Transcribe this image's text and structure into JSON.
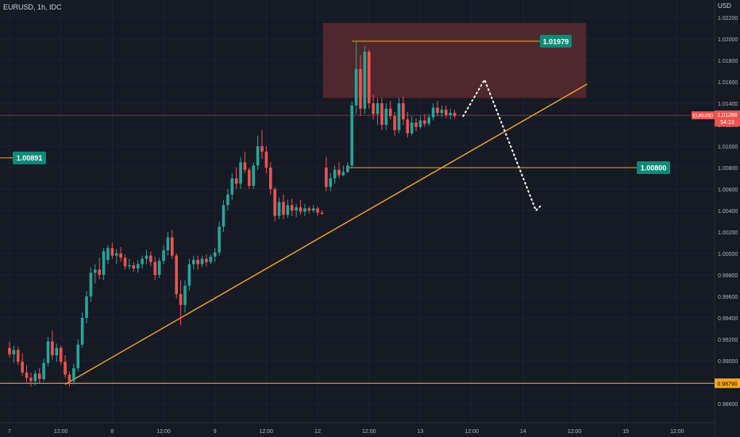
{
  "header": {
    "symbol": "EURUSD, 1h, IDC",
    "currency": "USD"
  },
  "colors": {
    "background": "#161a25",
    "bull": "#26a69a",
    "bear": "#ef5350",
    "trendline": "#f7a825",
    "zone": "#5a2a2e",
    "grid": "#1f2330",
    "text": "#b2b5be"
  },
  "chart_data": {
    "type": "candlestick",
    "title": "",
    "xlabel": "",
    "ylabel": "",
    "ylim": [
      0.985,
      1.0235
    ],
    "y_ticks": [
      "1.02200",
      "1.02000",
      "1.01800",
      "1.01600",
      "1.01400",
      "1.01200",
      "1.01000",
      "1.00800",
      "1.00600",
      "1.00400",
      "1.00200",
      "1.00000",
      "0.99800",
      "0.99600",
      "0.99400",
      "0.99200",
      "0.99000",
      "0.98800",
      "0.98600"
    ],
    "x_ticks": [
      {
        "i": 0,
        "label": "7"
      },
      {
        "i": 12,
        "label": "12:00"
      },
      {
        "i": 24,
        "label": "8"
      },
      {
        "i": 36,
        "label": "12:00"
      },
      {
        "i": 48,
        "label": "9"
      },
      {
        "i": 60,
        "label": "12:00"
      },
      {
        "i": 72,
        "label": "12"
      },
      {
        "i": 84,
        "label": "12:00"
      },
      {
        "i": 96,
        "label": "13"
      },
      {
        "i": 108,
        "label": "12:00"
      },
      {
        "i": 120,
        "label": "14"
      },
      {
        "i": 132,
        "label": "12:00"
      },
      {
        "i": 144,
        "label": "15"
      },
      {
        "i": 156,
        "label": "12:00"
      }
    ],
    "candles": [
      [
        0.9912,
        0.9918,
        0.9903,
        0.9906
      ],
      [
        0.9906,
        0.9914,
        0.9898,
        0.991
      ],
      [
        0.991,
        0.9913,
        0.9896,
        0.9899
      ],
      [
        0.9899,
        0.9907,
        0.9886,
        0.9889
      ],
      [
        0.9889,
        0.9896,
        0.988,
        0.9884
      ],
      [
        0.9884,
        0.9889,
        0.9876,
        0.9881
      ],
      [
        0.9881,
        0.9891,
        0.9877,
        0.9888
      ],
      [
        0.9888,
        0.9893,
        0.9879,
        0.9883
      ],
      [
        0.9883,
        0.9902,
        0.9881,
        0.9898
      ],
      [
        0.9898,
        0.9922,
        0.9895,
        0.9918
      ],
      [
        0.9918,
        0.9928,
        0.9901,
        0.9905
      ],
      [
        0.9905,
        0.9916,
        0.9899,
        0.9912
      ],
      [
        0.9912,
        0.9914,
        0.9896,
        0.9899
      ],
      [
        0.9899,
        0.9905,
        0.9884,
        0.9887
      ],
      [
        0.9887,
        0.989,
        0.9876,
        0.9881
      ],
      [
        0.9881,
        0.9897,
        0.9878,
        0.9893
      ],
      [
        0.9893,
        0.992,
        0.989,
        0.9915
      ],
      [
        0.9915,
        0.9945,
        0.9912,
        0.994
      ],
      [
        0.994,
        0.9965,
        0.9935,
        0.996
      ],
      [
        0.996,
        0.9987,
        0.9955,
        0.9982
      ],
      [
        0.9982,
        0.999,
        0.9972,
        0.9985
      ],
      [
        0.9985,
        0.9996,
        0.9976,
        0.998
      ],
      [
        0.998,
        1.0005,
        0.9975,
        1.0002
      ],
      [
        0.9994,
        1.0008,
        0.999,
        1.0005
      ],
      [
        1.0005,
        1.001,
        0.9995,
        0.9998
      ],
      [
        0.9998,
        1.0004,
        0.999,
        1.0
      ],
      [
        1.0,
        1.0006,
        0.9992,
        0.9996
      ],
      [
        0.9996,
        0.9999,
        0.9985,
        0.9988
      ],
      [
        0.9988,
        0.9995,
        0.9985,
        0.9989
      ],
      [
        0.9989,
        0.9992,
        0.9983,
        0.9986
      ],
      [
        0.9986,
        0.9994,
        0.9982,
        0.999
      ],
      [
        0.999,
        0.9998,
        0.9986,
        0.9995
      ],
      [
        0.9995,
        1.0003,
        0.999,
        0.9998
      ],
      [
        0.9998,
        1.0002,
        0.9988,
        0.9992
      ],
      [
        0.9992,
        0.9997,
        0.9975,
        0.998
      ],
      [
        0.998,
        0.9996,
        0.9977,
        0.9993
      ],
      [
        0.9993,
        1.0008,
        0.999,
        1.0003
      ],
      [
        1.0003,
        1.002,
        0.9998,
        1.0015
      ],
      [
        1.0015,
        1.0022,
        0.9995,
        0.9998
      ],
      [
        0.9998,
        1.0,
        0.9958,
        0.9962
      ],
      [
        0.9962,
        0.9975,
        0.9933,
        0.9952
      ],
      [
        0.9952,
        0.9975,
        0.9945,
        0.997
      ],
      [
        0.997,
        0.9995,
        0.9965,
        0.999
      ],
      [
        0.999,
        0.9998,
        0.9985,
        0.9994
      ],
      [
        0.9994,
        0.9998,
        0.9985,
        0.999
      ],
      [
        0.999,
        0.9998,
        0.9987,
        0.9995
      ],
      [
        0.9995,
        0.9999,
        0.9988,
        0.9992
      ],
      [
        0.9992,
        0.9999,
        0.999,
        0.9997
      ],
      [
        0.9997,
        1.0005,
        0.9992,
        1.0001
      ],
      [
        1.0001,
        1.003,
        0.9998,
        1.0025
      ],
      [
        1.0025,
        1.005,
        1.002,
        1.0045
      ],
      [
        1.0045,
        1.006,
        1.004,
        1.0055
      ],
      [
        1.0055,
        1.0075,
        1.005,
        1.007
      ],
      [
        1.007,
        1.008,
        1.006,
        1.0065
      ],
      [
        1.0065,
        1.009,
        1.006,
        1.0085
      ],
      [
        1.0085,
        1.0095,
        1.0075,
        1.0078
      ],
      [
        1.0078,
        1.008,
        1.006,
        1.0063
      ],
      [
        1.0063,
        1.0085,
        1.006,
        1.0082
      ],
      [
        1.0082,
        1.011,
        1.0078,
        1.01
      ],
      [
        1.01,
        1.0115,
        1.0088,
        1.0095
      ],
      [
        1.0095,
        1.01,
        1.0075,
        1.008
      ],
      [
        1.008,
        1.0085,
        1.0055,
        1.006
      ],
      [
        1.006,
        1.0062,
        1.003,
        1.0035
      ],
      [
        1.0035,
        1.0052,
        1.0032,
        1.0048
      ],
      [
        1.0048,
        1.0055,
        1.0032,
        1.0036
      ],
      [
        1.0036,
        1.005,
        1.0033,
        1.0045
      ],
      [
        1.0045,
        1.0051,
        1.0035,
        1.004
      ],
      [
        1.004,
        1.0046,
        1.0034,
        1.0043
      ],
      [
        1.0043,
        1.005,
        1.0036,
        1.0039
      ],
      [
        1.0039,
        1.0046,
        1.0035,
        1.0042
      ],
      [
        1.0042,
        1.0044,
        1.0037,
        1.004
      ],
      [
        1.004,
        1.0045,
        1.0038,
        1.0042
      ],
      [
        1.0042,
        1.0044,
        1.0035,
        1.0038
      ],
      [
        1.0038,
        1.004,
        1.0036,
        1.0037
      ],
      [
        1.008,
        1.009,
        1.0058,
        1.0062
      ],
      [
        1.0062,
        1.0075,
        1.0058,
        1.007
      ],
      [
        1.007,
        1.0082,
        1.0065,
        1.0078
      ],
      [
        1.0078,
        1.0085,
        1.007,
        1.0073
      ],
      [
        1.0073,
        1.0082,
        1.0072,
        1.0076
      ],
      [
        1.0076,
        1.0085,
        1.0075,
        1.0082
      ],
      [
        1.0082,
        1.0142,
        1.008,
        1.0138
      ],
      [
        1.0138,
        1.0198,
        1.013,
        1.0172
      ],
      [
        1.0172,
        1.0185,
        1.0128,
        1.0135
      ],
      [
        1.0135,
        1.0193,
        1.013,
        1.0188
      ],
      [
        1.0188,
        1.019,
        1.0135,
        1.014
      ],
      [
        1.014,
        1.0148,
        1.0125,
        1.013
      ],
      [
        1.013,
        1.0145,
        1.012,
        1.014
      ],
      [
        1.014,
        1.0145,
        1.0115,
        1.012
      ],
      [
        1.012,
        1.014,
        1.0115,
        1.0135
      ],
      [
        1.0135,
        1.0142,
        1.0125,
        1.0128
      ],
      [
        1.0128,
        1.0132,
        1.011,
        1.0115
      ],
      [
        1.0115,
        1.0145,
        1.0112,
        1.014
      ],
      [
        1.014,
        1.0146,
        1.012,
        1.0125
      ],
      [
        1.0125,
        1.0132,
        1.0108,
        1.0112
      ],
      [
        1.0112,
        1.0128,
        1.011,
        1.0122
      ],
      [
        1.0122,
        1.0126,
        1.0114,
        1.0118
      ],
      [
        1.0118,
        1.0128,
        1.0116,
        1.0124
      ],
      [
        1.0124,
        1.013,
        1.0118,
        1.0121
      ],
      [
        1.0121,
        1.013,
        1.0119,
        1.0127
      ],
      [
        1.0127,
        1.014,
        1.0124,
        1.0136
      ],
      [
        1.0136,
        1.0142,
        1.0128,
        1.0131
      ],
      [
        1.0131,
        1.0138,
        1.0127,
        1.0134
      ],
      [
        1.0134,
        1.0138,
        1.0126,
        1.0129
      ],
      [
        1.0129,
        1.0135,
        1.0125,
        1.0131
      ],
      [
        1.0131,
        1.0134,
        1.0126,
        1.0128
      ]
    ],
    "candle_gap_index": 74,
    "lines": {
      "resistance": {
        "price": 1.01979,
        "label": "1.01979"
      },
      "support_mid": {
        "price": 1.008,
        "label": "1.00800"
      },
      "left_label": {
        "price": 1.00891,
        "label": "1.00891"
      },
      "low": {
        "price": 0.9879,
        "label": "0.98790"
      },
      "current": {
        "price": 1.01288,
        "label": "1.01288",
        "sub": "EURUSD",
        "time": "54:13"
      }
    },
    "trendline": {
      "from": [
        0.9878,
        13
      ],
      "to": [
        1.0158,
        135
      ]
    },
    "zone": {
      "price_top": 1.0215,
      "price_bottom": 1.0145,
      "from_i": 74,
      "to_i": 134
    },
    "projection": [
      [
        1.0128,
        106
      ],
      [
        1.0162,
        111
      ],
      [
        1.004,
        123
      ],
      [
        1.0044,
        124
      ]
    ]
  }
}
